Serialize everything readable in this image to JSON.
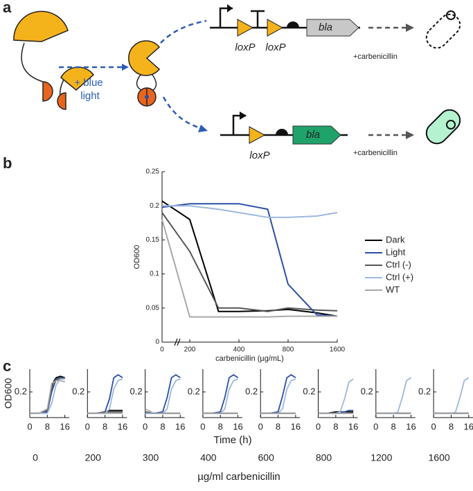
{
  "panel_a": {
    "label": "a",
    "blue_light": [
      "+ blue",
      "light"
    ],
    "top": {
      "loxp": [
        "loxP",
        "loxP"
      ],
      "gene": "bla",
      "condition": "+carbenicillin"
    },
    "bottom": {
      "loxp": "loxP",
      "gene": "bla",
      "condition": "+carbenicillin"
    }
  },
  "panel_b": {
    "label": "b"
  },
  "panel_c": {
    "label": "c",
    "xlabel": "Time (h)",
    "footer": "µg/ml carbenicillin"
  },
  "chart_data": [
    {
      "type": "line",
      "xlabel": "carbenicillin (µg/mL)",
      "ylabel": "OD600",
      "xscale": "log",
      "legend": "right",
      "x": [
        0,
        200,
        300,
        400,
        600,
        800,
        1200,
        1600
      ],
      "xlim": [
        0,
        1600
      ],
      "xticks": [
        0,
        200,
        400,
        800,
        1600
      ],
      "ylim": [
        0,
        0.25
      ],
      "yticks": [
        0,
        0.05,
        0.1,
        0.15,
        0.2,
        0.25
      ],
      "series": [
        {
          "name": "Dark",
          "color": "#000000",
          "values": [
            0.207,
            0.18,
            0.045,
            0.045,
            0.046,
            0.048,
            0.043,
            0.038
          ]
        },
        {
          "name": "Light",
          "color": "#2a4fa8",
          "values": [
            0.198,
            0.203,
            0.203,
            0.203,
            0.195,
            0.085,
            0.04,
            0.038
          ]
        },
        {
          "name": "Ctrl (-)",
          "color": "#555555",
          "values": [
            0.19,
            0.133,
            0.05,
            0.05,
            0.045,
            0.05,
            0.047,
            0.046
          ]
        },
        {
          "name": "Ctrl (+)",
          "color": "#9cb8dc",
          "values": [
            0.2,
            0.2,
            0.195,
            0.19,
            0.183,
            0.183,
            0.185,
            0.19
          ]
        },
        {
          "name": "WT",
          "color": "#a8a8a8",
          "values": [
            0.18,
            0.037,
            0.037,
            0.037,
            0.037,
            0.038,
            0.038,
            0.038
          ]
        }
      ]
    },
    {
      "type": "line",
      "condition": "0",
      "ylabel": "OD600",
      "x": [
        0,
        4,
        8,
        10,
        12,
        14,
        16
      ],
      "xlim": [
        0,
        18
      ],
      "xticks": [
        0,
        8,
        16
      ],
      "ylim": [
        0.02,
        0.36
      ],
      "yticks": [
        0.2
      ],
      "series": [
        {
          "color": "#000000",
          "values": [
            0.05,
            0.05,
            0.07,
            0.25,
            0.3,
            0.31,
            0.3
          ]
        },
        {
          "color": "#2a4fa8",
          "values": [
            0.05,
            0.05,
            0.06,
            0.2,
            0.29,
            0.3,
            0.3
          ]
        },
        {
          "color": "#555555",
          "values": [
            0.05,
            0.05,
            0.07,
            0.23,
            0.28,
            0.3,
            0.29
          ]
        },
        {
          "color": "#9cb8dc",
          "values": [
            0.05,
            0.05,
            0.05,
            0.12,
            0.25,
            0.29,
            0.29
          ]
        },
        {
          "color": "#a8a8a8",
          "values": [
            0.05,
            0.05,
            0.08,
            0.26,
            0.28,
            0.28,
            0.27
          ]
        }
      ]
    },
    {
      "type": "line",
      "condition": "200",
      "x": [
        0,
        4,
        8,
        10,
        12,
        14,
        16
      ],
      "xlim": [
        0,
        18
      ],
      "xticks": [
        0,
        8,
        16
      ],
      "ylim": [
        0.02,
        0.36
      ],
      "yticks": [
        0.2
      ],
      "series": [
        {
          "color": "#000000",
          "values": [
            0.05,
            0.05,
            0.06,
            0.07,
            0.07,
            0.07,
            0.07
          ]
        },
        {
          "color": "#2a4fa8",
          "values": [
            0.05,
            0.05,
            0.06,
            0.15,
            0.3,
            0.32,
            0.3
          ]
        },
        {
          "color": "#555555",
          "values": [
            0.05,
            0.05,
            0.06,
            0.06,
            0.06,
            0.06,
            0.06
          ]
        },
        {
          "color": "#9cb8dc",
          "values": [
            0.05,
            0.05,
            0.05,
            0.08,
            0.22,
            0.28,
            0.29
          ]
        },
        {
          "color": "#a8a8a8",
          "values": [
            0.05,
            0.05,
            0.05,
            0.05,
            0.05,
            0.05,
            0.05
          ]
        }
      ]
    },
    {
      "type": "line",
      "condition": "300",
      "x": [
        0,
        4,
        8,
        10,
        12,
        14,
        16
      ],
      "xlim": [
        0,
        18
      ],
      "xticks": [
        0,
        8,
        16
      ],
      "ylim": [
        0.02,
        0.36
      ],
      "yticks": [
        0.2
      ],
      "series": [
        {
          "color": "#000000",
          "values": [
            0.05,
            0.05,
            0.05,
            0.05,
            0.05,
            0.05,
            0.05
          ]
        },
        {
          "color": "#2a4fa8",
          "values": [
            0.05,
            0.05,
            0.06,
            0.16,
            0.3,
            0.32,
            0.3
          ]
        },
        {
          "color": "#555555",
          "values": [
            0.06,
            0.05,
            0.05,
            0.05,
            0.05,
            0.05,
            0.05
          ]
        },
        {
          "color": "#9cb8dc",
          "values": [
            0.05,
            0.05,
            0.05,
            0.08,
            0.22,
            0.28,
            0.29
          ]
        },
        {
          "color": "#a8a8a8",
          "values": [
            0.08,
            0.05,
            0.05,
            0.05,
            0.05,
            0.05,
            0.05
          ]
        }
      ]
    },
    {
      "type": "line",
      "condition": "400",
      "x": [
        0,
        4,
        8,
        10,
        12,
        14,
        16
      ],
      "xlim": [
        0,
        18
      ],
      "xticks": [
        0,
        8,
        16
      ],
      "ylim": [
        0.02,
        0.36
      ],
      "yticks": [
        0.2
      ],
      "series": [
        {
          "color": "#000000",
          "values": [
            0.05,
            0.05,
            0.05,
            0.05,
            0.05,
            0.05,
            0.05
          ]
        },
        {
          "color": "#2a4fa8",
          "values": [
            0.05,
            0.05,
            0.06,
            0.16,
            0.3,
            0.32,
            0.3
          ]
        },
        {
          "color": "#555555",
          "values": [
            0.05,
            0.05,
            0.05,
            0.05,
            0.05,
            0.05,
            0.05
          ]
        },
        {
          "color": "#9cb8dc",
          "values": [
            0.05,
            0.05,
            0.05,
            0.08,
            0.22,
            0.28,
            0.29
          ]
        },
        {
          "color": "#a8a8a8",
          "values": [
            0.05,
            0.05,
            0.05,
            0.05,
            0.05,
            0.05,
            0.05
          ]
        }
      ]
    },
    {
      "type": "line",
      "condition": "600",
      "x": [
        0,
        4,
        8,
        10,
        12,
        14,
        16
      ],
      "xlim": [
        0,
        18
      ],
      "xticks": [
        0,
        8,
        16
      ],
      "ylim": [
        0.02,
        0.36
      ],
      "yticks": [
        0.2
      ],
      "series": [
        {
          "color": "#000000",
          "values": [
            0.05,
            0.05,
            0.05,
            0.05,
            0.05,
            0.05,
            0.05
          ]
        },
        {
          "color": "#2a4fa8",
          "values": [
            0.05,
            0.05,
            0.06,
            0.17,
            0.3,
            0.32,
            0.3
          ]
        },
        {
          "color": "#555555",
          "values": [
            0.05,
            0.05,
            0.05,
            0.05,
            0.05,
            0.05,
            0.05
          ]
        },
        {
          "color": "#9cb8dc",
          "values": [
            0.05,
            0.05,
            0.05,
            0.08,
            0.22,
            0.28,
            0.29
          ]
        },
        {
          "color": "#a8a8a8",
          "values": [
            0.05,
            0.05,
            0.05,
            0.05,
            0.05,
            0.05,
            0.05
          ]
        }
      ]
    },
    {
      "type": "line",
      "condition": "800",
      "x": [
        0,
        4,
        8,
        10,
        12,
        14,
        16
      ],
      "xlim": [
        0,
        18
      ],
      "xticks": [
        0,
        8,
        16
      ],
      "ylim": [
        0.02,
        0.36
      ],
      "yticks": [
        0.2
      ],
      "series": [
        {
          "color": "#000000",
          "values": [
            0.05,
            0.05,
            0.06,
            0.06,
            0.06,
            0.06,
            0.06
          ]
        },
        {
          "color": "#2a4fa8",
          "values": [
            0.05,
            0.05,
            0.05,
            0.06,
            0.06,
            0.07,
            0.07
          ]
        },
        {
          "color": "#555555",
          "values": [
            0.05,
            0.05,
            0.05,
            0.05,
            0.05,
            0.05,
            0.05
          ]
        },
        {
          "color": "#9cb8dc",
          "values": [
            0.05,
            0.05,
            0.05,
            0.06,
            0.15,
            0.27,
            0.29
          ]
        },
        {
          "color": "#a8a8a8",
          "values": [
            0.05,
            0.05,
            0.05,
            0.05,
            0.05,
            0.05,
            0.05
          ]
        }
      ]
    },
    {
      "type": "line",
      "condition": "1200",
      "x": [
        0,
        4,
        8,
        10,
        12,
        14,
        16
      ],
      "xlim": [
        0,
        18
      ],
      "xticks": [
        0,
        8,
        16
      ],
      "ylim": [
        0.02,
        0.36
      ],
      "yticks": [
        0.2
      ],
      "series": [
        {
          "color": "#000000",
          "values": [
            0.05,
            0.05,
            0.05,
            0.05,
            0.05,
            0.05,
            0.05
          ]
        },
        {
          "color": "#2a4fa8",
          "values": [
            0.05,
            0.05,
            0.05,
            0.05,
            0.05,
            0.05,
            0.05
          ]
        },
        {
          "color": "#555555",
          "values": [
            0.05,
            0.05,
            0.05,
            0.05,
            0.05,
            0.05,
            0.05
          ]
        },
        {
          "color": "#9cb8dc",
          "values": [
            0.05,
            0.05,
            0.05,
            0.06,
            0.16,
            0.28,
            0.3
          ]
        },
        {
          "color": "#a8a8a8",
          "values": [
            0.05,
            0.05,
            0.05,
            0.05,
            0.05,
            0.05,
            0.05
          ]
        }
      ]
    },
    {
      "type": "line",
      "condition": "1600",
      "x": [
        0,
        4,
        8,
        10,
        12,
        14,
        16
      ],
      "xlim": [
        0,
        18
      ],
      "xticks": [
        0,
        8,
        16
      ],
      "ylim": [
        0.02,
        0.36
      ],
      "yticks": [
        0.2
      ],
      "series": [
        {
          "color": "#000000",
          "values": [
            0.05,
            0.05,
            0.05,
            0.05,
            0.05,
            0.05,
            0.05
          ]
        },
        {
          "color": "#2a4fa8",
          "values": [
            0.05,
            0.05,
            0.05,
            0.05,
            0.05,
            0.05,
            0.05
          ]
        },
        {
          "color": "#555555",
          "values": [
            0.05,
            0.05,
            0.05,
            0.05,
            0.05,
            0.05,
            0.05
          ]
        },
        {
          "color": "#9cb8dc",
          "values": [
            0.05,
            0.05,
            0.05,
            0.06,
            0.16,
            0.28,
            0.3
          ]
        },
        {
          "color": "#a8a8a8",
          "values": [
            0.05,
            0.05,
            0.05,
            0.05,
            0.05,
            0.05,
            0.05
          ]
        }
      ]
    }
  ]
}
